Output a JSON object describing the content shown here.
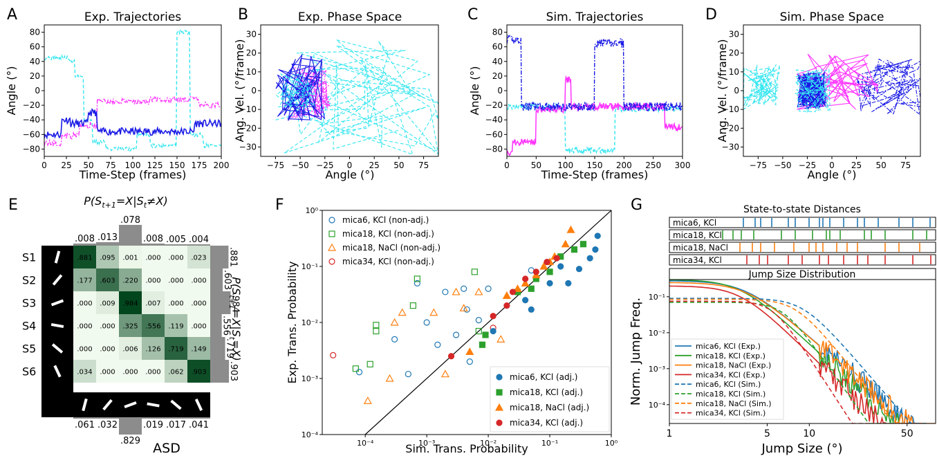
{
  "colors": {
    "magenta": "#ff33ff",
    "cyan": "#33e6f0",
    "blue": "#1a1ae6",
    "plot_blue": "#1f77b4",
    "plot_green": "#2ca02c",
    "plot_orange": "#ff7f0e",
    "plot_red": "#d62728",
    "heat_dark": "#00441b",
    "heat_light": "#f1faee",
    "gray_bar": "#8c8c8c"
  },
  "panels": {
    "A": {
      "letter": "A",
      "title": "Exp. Trajectories",
      "xlabel": "Time-Step (frames)",
      "ylabel": "Angle (°)",
      "xticks": [
        "0",
        "25",
        "50",
        "75",
        "100",
        "125",
        "150",
        "175",
        "200"
      ],
      "yticks": [
        "80",
        "60",
        "40",
        "20",
        "0",
        "−20",
        "−40",
        "−60",
        "−80"
      ]
    },
    "B": {
      "letter": "B",
      "title": "Exp. Phase Space",
      "xlabel": "Angle (°)",
      "ylabel": "Ang. Vel. (°/frame)",
      "xticks": [
        "−75",
        "−50",
        "−25",
        "0",
        "25",
        "50",
        "75"
      ],
      "yticks": [
        "30",
        "20",
        "10",
        "0",
        "−10",
        "−20",
        "−30"
      ]
    },
    "C": {
      "letter": "C",
      "title": "Sim. Trajectories",
      "xlabel": "Time-Step (frames)",
      "ylabel": "Angle (°)",
      "xticks": [
        "0",
        "50",
        "100",
        "150",
        "200",
        "250",
        "300"
      ],
      "yticks": [
        "80",
        "60",
        "40",
        "20",
        "0",
        "−20",
        "−40",
        "−60",
        "−80"
      ]
    },
    "D": {
      "letter": "D",
      "title": "Sim. Phase Space",
      "xlabel": "Angle (°)",
      "ylabel": "Ang. Vel. (°/frame)",
      "xticks": [
        "−75",
        "−50",
        "−25",
        "0",
        "25",
        "50",
        "75"
      ],
      "yticks": [
        "30",
        "20",
        "10",
        "0",
        "−10",
        "−20",
        "−30"
      ]
    },
    "E": {
      "letter": "E",
      "top_label": "P(S t+1=X|S t≠X)",
      "top_label_parts": {
        "a": "P(S",
        "b": "t+1",
        "c": "=X|S",
        "d": "t",
        "e": "≠X)"
      },
      "right_label": "P(S t+1=X|S t=X)",
      "right_label_parts": {
        "a": "P(S",
        "b": "t+1",
        "c": "=X|S",
        "d": "t",
        "e": "=X)"
      },
      "bottom_label": "ASD",
      "states": [
        "S1",
        "S2",
        "S3",
        "S4",
        "S5",
        "S6"
      ],
      "matrix": [
        [
          ".881",
          ".095",
          ".001",
          ".000",
          ".000",
          ".023"
        ],
        [
          ".177",
          ".603",
          ".220",
          ".000",
          ".000",
          ".000"
        ],
        [
          ".000",
          ".009",
          ".984",
          ".007",
          ".000",
          ".000"
        ],
        [
          ".000",
          ".000",
          ".325",
          ".556",
          ".119",
          ".000"
        ],
        [
          ".000",
          ".000",
          ".006",
          ".126",
          ".719",
          ".149"
        ],
        [
          ".034",
          ".000",
          ".000",
          ".000",
          ".062",
          ".903"
        ]
      ],
      "matrix_values": [
        [
          0.881,
          0.095,
          0.001,
          0.0,
          0.0,
          0.023
        ],
        [
          0.177,
          0.603,
          0.22,
          0.0,
          0.0,
          0.0
        ],
        [
          0.0,
          0.009,
          0.984,
          0.007,
          0.0,
          0.0
        ],
        [
          0.0,
          0.0,
          0.325,
          0.556,
          0.119,
          0.0
        ],
        [
          0.0,
          0.0,
          0.006,
          0.126,
          0.719,
          0.149
        ],
        [
          0.034,
          0.0,
          0.0,
          0.0,
          0.062,
          0.903
        ]
      ],
      "top_values": [
        ".008",
        ".013",
        ".078",
        ".008",
        ".005",
        ".004"
      ],
      "top_values_num": [
        0.008,
        0.013,
        0.078,
        0.008,
        0.005,
        0.004
      ],
      "right_values": [
        ".881",
        ".603",
        ".984",
        ".556",
        ".719",
        ".903"
      ],
      "right_values_num": [
        0.881,
        0.603,
        0.984,
        0.556,
        0.719,
        0.903
      ],
      "bottom_values": [
        ".061",
        ".032",
        ".829",
        ".019",
        ".017",
        ".041"
      ],
      "bottom_values_num": [
        0.061,
        0.032,
        0.829,
        0.019,
        0.017,
        0.041
      ]
    },
    "F": {
      "letter": "F",
      "xlabel": "Sim. Trans. Probability",
      "ylabel": "Exp. Trans. Probability",
      "xticks": [
        "10⁻⁴",
        "10⁻³",
        "10⁻²",
        "10⁻¹",
        "10⁰"
      ],
      "yticks": [
        "10⁰",
        "10⁻¹",
        "10⁻²",
        "10⁻³",
        "10⁻⁴"
      ],
      "legend_open": [
        "mica6, KCl (non-adj.)",
        "mica18, KCl (non-adj.)",
        "mica18, NaCl (non-adj.)",
        "mica34, KCl (non-adj.)"
      ],
      "legend_filled": [
        "mica6, KCl (adj.)",
        "mica18, KCl (adj.)",
        "mica18, NaCl (adj.)",
        "mica34, KCl (adj.)"
      ]
    },
    "G": {
      "letter": "G",
      "top_title": "State-to-state Distances",
      "rows": [
        "mica6, KCl",
        "mica18, KCl",
        "mica18, NaCl",
        "mica34, KCl"
      ],
      "hist_title": "Jump Size Distribution",
      "xlabel": "Jump Size (°)",
      "ylabel": "Norm. Jump Freq.",
      "xticks": [
        "1",
        "5",
        "10",
        "50"
      ],
      "yticks": [
        "10⁻¹",
        "10⁻²",
        "10⁻³",
        "10⁻⁴"
      ],
      "legend": [
        "mica6, KCl (Exp.)",
        "mica18, KCl (Exp.)",
        "mica18, NaCl (Exp.)",
        "mica34, KCl (Exp.)",
        "mica6, KCl (Sim.)",
        "mica18, KCl (Sim.)",
        "mica18, NaCl (Sim.)",
        "mica34, KCl (Sim.)"
      ]
    }
  },
  "chart_data": [
    {
      "type": "line",
      "title": "Exp. Trajectories",
      "xlabel": "Time-Step (frames)",
      "ylabel": "Angle (°)",
      "xlim": [
        0,
        200
      ],
      "ylim": [
        -90,
        90
      ],
      "series": [
        {
          "color": "#1a1ae6",
          "style": "solid",
          "mean": -55
        },
        {
          "color": "#ff33ff",
          "style": "dashdot",
          "mean": -15
        },
        {
          "color": "#33e6f0",
          "style": "dashed",
          "mean": 20
        }
      ]
    },
    {
      "type": "scatter",
      "title": "Exp. Phase Space",
      "xlabel": "Angle (°)",
      "ylabel": "Ang. Vel. (°/frame)",
      "xlim": [
        -90,
        90
      ],
      "ylim": [
        -35,
        35
      ]
    },
    {
      "type": "line",
      "title": "Sim. Trajectories",
      "xlabel": "Time-Step (frames)",
      "ylabel": "Angle (°)",
      "xlim": [
        0,
        300
      ],
      "ylim": [
        -90,
        90
      ]
    },
    {
      "type": "scatter",
      "title": "Sim. Phase Space",
      "xlabel": "Angle (°)",
      "ylabel": "Ang. Vel. (°/frame)",
      "xlim": [
        -90,
        90
      ],
      "ylim": [
        -35,
        35
      ]
    },
    {
      "type": "heatmap",
      "row_labels": [
        "S1",
        "S2",
        "S3",
        "S4",
        "S5",
        "S6"
      ],
      "values": [
        [
          0.881,
          0.095,
          0.001,
          0.0,
          0.0,
          0.023
        ],
        [
          0.177,
          0.603,
          0.22,
          0.0,
          0.0,
          0.0
        ],
        [
          0.0,
          0.009,
          0.984,
          0.007,
          0.0,
          0.0
        ],
        [
          0.0,
          0.0,
          0.325,
          0.556,
          0.119,
          0.0
        ],
        [
          0.0,
          0.0,
          0.006,
          0.126,
          0.719,
          0.149
        ],
        [
          0.034,
          0.0,
          0.0,
          0.0,
          0.062,
          0.903
        ]
      ]
    },
    {
      "type": "scatter",
      "xlabel": "Sim. Trans. Probability",
      "ylabel": "Exp. Trans. Probability",
      "xscale": "log",
      "yscale": "log",
      "xlim": [
        2e-05,
        1
      ],
      "ylim": [
        0.0001,
        1
      ],
      "series": [
        {
          "name": "mica6, KCl (non-adj.)",
          "color": "#1f77b4",
          "marker": "circle-open",
          "points": [
            [
              8e-05,
              0.0013
            ],
            [
              0.0005,
              0.0012
            ],
            [
              0.0007,
              0.05
            ],
            [
              0.001,
              0.01
            ],
            [
              0.0015,
              0.004
            ],
            [
              0.002,
              0.035
            ],
            [
              0.003,
              0.006
            ],
            [
              0.004,
              0.04
            ],
            [
              0.005,
              0.002
            ],
            [
              0.0045,
              0.017
            ],
            [
              0.007,
              0.011
            ],
            [
              0.01,
              0.04
            ],
            [
              0.05,
              0.085
            ],
            [
              0.0003,
              0.005
            ]
          ]
        },
        {
          "name": "mica18, KCl (non-adj.)",
          "color": "#2ca02c",
          "marker": "square-open",
          "points": [
            [
              7e-05,
              0.0015
            ],
            [
              0.00012,
              0.0018
            ],
            [
              0.00015,
              0.007
            ],
            [
              0.00015,
              0.009
            ],
            [
              0.0006,
              0.02
            ],
            [
              0.0007,
              0.06
            ],
            [
              0.006,
              0.08
            ],
            [
              0.007,
              0.007
            ]
          ]
        },
        {
          "name": "mica18, NaCl (non-adj.)",
          "color": "#ff7f0e",
          "marker": "triangle-open",
          "points": [
            [
              0.00011,
              0.0004
            ],
            [
              0.00025,
              0.001
            ],
            [
              0.0003,
              0.01
            ],
            [
              0.0004,
              0.015
            ],
            [
              0.0013,
              0.015
            ],
            [
              0.003,
              0.035
            ],
            [
              0.004,
              0.018
            ],
            [
              0.007,
              0.035
            ],
            [
              0.016,
              0.005
            ],
            [
              0.02,
              0.03
            ],
            [
              0.002,
              0.0012
            ]
          ]
        },
        {
          "name": "mica34, KCl (non-adj.)",
          "color": "#d62728",
          "marker": "circle-open",
          "points": [
            [
              3e-05,
              0.0026
            ],
            [
              0.012,
              0.008
            ]
          ]
        },
        {
          "name": "mica6, KCl (adj.)",
          "color": "#1f77b4",
          "marker": "circle",
          "points": [
            [
              0.012,
              0.007
            ],
            [
              0.05,
              0.017
            ],
            [
              0.1,
              0.05
            ],
            [
              0.2,
              0.05
            ],
            [
              0.3,
              0.09
            ],
            [
              0.45,
              0.14
            ],
            [
              0.55,
              0.2
            ],
            [
              0.6,
              0.35
            ],
            [
              0.15,
              0.1
            ],
            [
              0.04,
              0.025
            ]
          ]
        },
        {
          "name": "mica18, KCl (adj.)",
          "color": "#2ca02c",
          "marker": "square",
          "points": [
            [
              0.008,
              0.004
            ],
            [
              0.009,
              0.006
            ],
            [
              0.03,
              0.035
            ],
            [
              0.06,
              0.06
            ],
            [
              0.1,
              0.08
            ],
            [
              0.15,
              0.15
            ],
            [
              0.25,
              0.2
            ],
            [
              0.35,
              0.25
            ],
            [
              0.05,
              0.04
            ]
          ]
        },
        {
          "name": "mica18, NaCl (adj.)",
          "color": "#ff7f0e",
          "marker": "triangle",
          "points": [
            [
              0.005,
              0.003
            ],
            [
              0.02,
              0.03
            ],
            [
              0.04,
              0.05
            ],
            [
              0.08,
              0.1
            ],
            [
              0.12,
              0.15
            ],
            [
              0.18,
              0.25
            ],
            [
              0.22,
              0.45
            ],
            [
              0.06,
              0.07
            ],
            [
              0.03,
              0.04
            ],
            [
              0.1,
              0.12
            ]
          ]
        },
        {
          "name": "mica34, KCl (adj.)",
          "color": "#d62728",
          "marker": "circle",
          "points": [
            [
              0.0025,
              0.0025
            ],
            [
              0.012,
              0.013
            ],
            [
              0.02,
              0.02
            ],
            [
              0.025,
              0.035
            ],
            [
              0.04,
              0.06
            ],
            [
              0.06,
              0.08
            ],
            [
              0.09,
              0.12
            ],
            [
              0.13,
              0.14
            ]
          ]
        }
      ]
    },
    {
      "type": "line",
      "title": "Jump Size Distribution",
      "xlabel": "Jump Size (°)",
      "ylabel": "Norm. Jump Freq.",
      "xscale": "log",
      "yscale": "log",
      "xlim": [
        1,
        80
      ],
      "ylim": [
        3e-05,
        0.3
      ]
    }
  ]
}
